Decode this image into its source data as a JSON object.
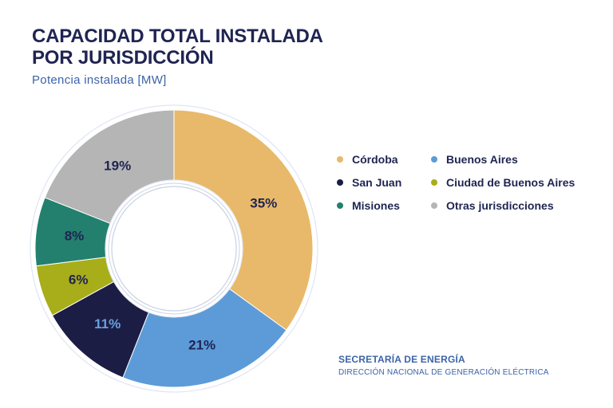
{
  "chart_data": {
    "type": "pie",
    "title": "CAPACIDAD TOTAL INSTALADA POR JURISDICCIÓN",
    "title_lines": [
      "CAPACIDAD TOTAL INSTALADA",
      "POR JURISDICCIÓN"
    ],
    "subtitle": "Potencia instalada [MW]",
    "donut": true,
    "legend_position": "right",
    "slices": [
      {
        "name": "Córdoba",
        "value": 35,
        "label": "35%",
        "color": "#e8b96a",
        "label_color": "#1f2452"
      },
      {
        "name": "Buenos Aires",
        "value": 21,
        "label": "21%",
        "color": "#5c9bd8",
        "label_color": "#1f2452"
      },
      {
        "name": "San Juan",
        "value": 11,
        "label": "11%",
        "color": "#1c1d45",
        "label_color": "#6aa0dc"
      },
      {
        "name": "Ciudad de Buenos Aires",
        "value": 6,
        "label": "6%",
        "color": "#a8ad1a",
        "label_color": "#1f2452"
      },
      {
        "name": "Misiones",
        "value": 8,
        "label": "8%",
        "color": "#23806e",
        "label_color": "#1f2452"
      },
      {
        "name": "Otras jurisdicciones",
        "value": 19,
        "label": "19%",
        "color": "#b5b5b5",
        "label_color": "#1f2452"
      }
    ]
  },
  "legend": [
    {
      "label": "Córdoba",
      "color": "#e8b96a"
    },
    {
      "label": "Buenos Aires",
      "color": "#5c9bd8"
    },
    {
      "label": "San Juan",
      "color": "#1c1d45"
    },
    {
      "label": "Ciudad de Buenos Aires",
      "color": "#a8ad1a"
    },
    {
      "label": "Misiones",
      "color": "#23806e"
    },
    {
      "label": "Otras jurisdicciones",
      "color": "#b5b5b5"
    }
  ],
  "footer": {
    "line1": "SECRETARÍA DE ENERGÍA",
    "line2": "DIRECCIÓN NACIONAL DE GENERACIÓN ELÉCTRICA"
  }
}
